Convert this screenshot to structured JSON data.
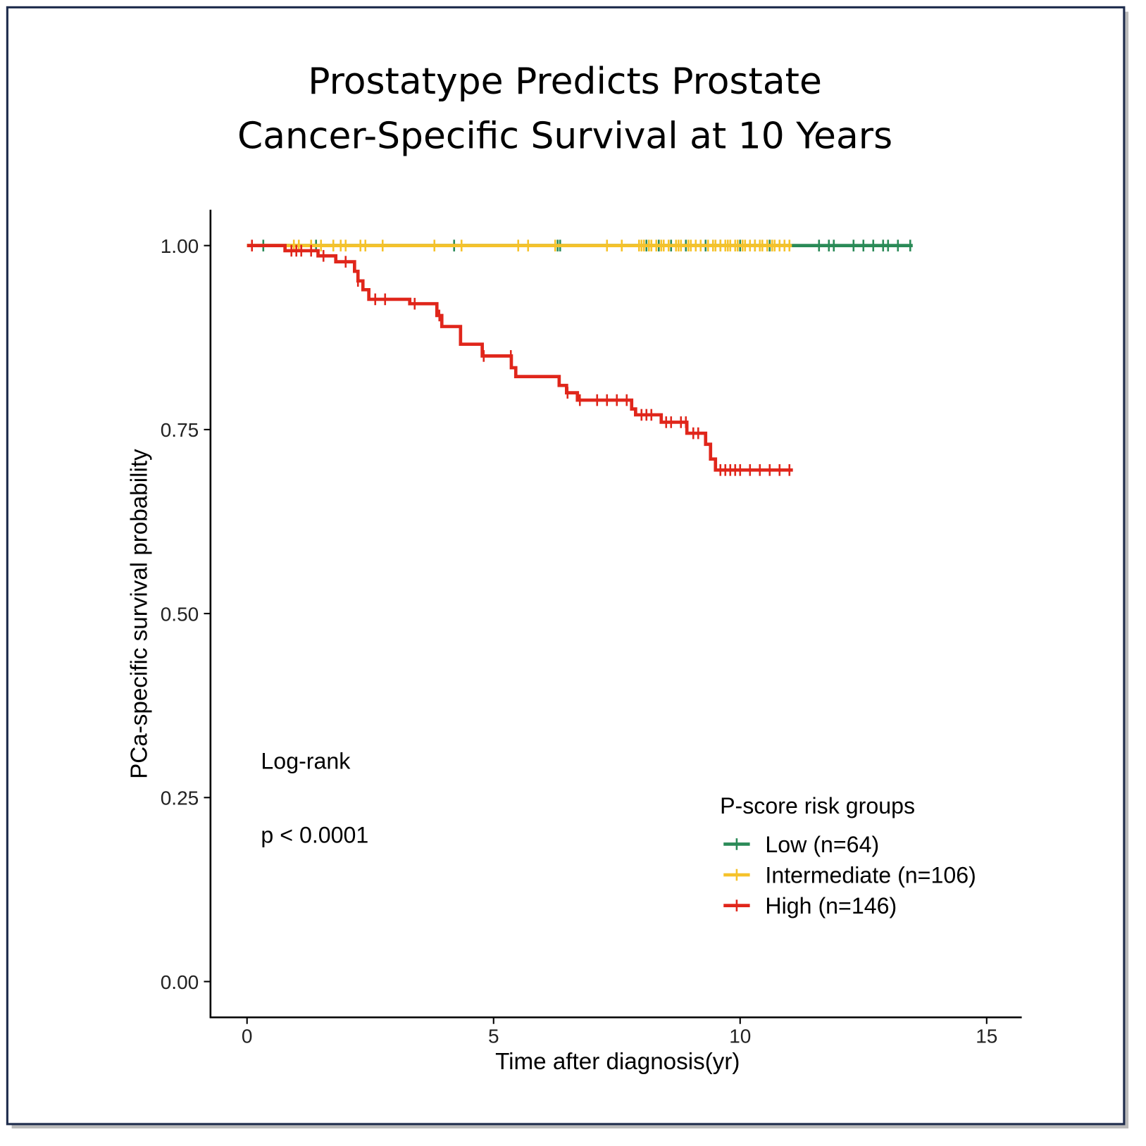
{
  "chart_data": {
    "type": "line",
    "subtype": "kaplan-meier",
    "title_lines": [
      "Prostatype Predicts Prostate",
      "Cancer-Specific Survival at 10 Years"
    ],
    "xlabel": "Time after diagnosis(yr)",
    "ylabel": "PCa-specific survival probability",
    "xlim": [
      -0.75,
      15.7
    ],
    "ylim": [
      -0.05,
      1.05
    ],
    "x_ticks": [
      0,
      5,
      10,
      15
    ],
    "x_tick_labels": [
      "0",
      "5",
      "10",
      "15"
    ],
    "y_ticks": [
      0,
      0.25,
      0.5,
      0.75,
      1.0
    ],
    "y_tick_labels": [
      "0.00",
      "0.25",
      "0.50",
      "0.75",
      "1.00"
    ],
    "grid": false,
    "annotations": {
      "test": "Log-rank",
      "p_value": "p < 0.0001"
    },
    "legend": {
      "title": "P-score risk groups",
      "placement": "bottom-right"
    },
    "series": [
      {
        "name": "Low (n=64)",
        "color": "#2a8a57",
        "steps": [
          [
            0,
            1.0
          ],
          [
            13.5,
            1.0
          ]
        ],
        "censor_times": [
          0.33,
          1.4,
          4.2,
          6.3,
          6.35,
          8.1,
          8.35,
          8.6,
          8.9,
          9.3,
          9.6,
          10.0,
          10.3,
          10.6,
          11.6,
          11.8,
          11.9,
          12.3,
          12.5,
          12.7,
          12.9,
          13.0,
          13.2,
          13.45
        ]
      },
      {
        "name": "Intermediate (n=106)",
        "color": "#f5c22b",
        "steps": [
          [
            0,
            1.0
          ],
          [
            11.05,
            1.0
          ]
        ],
        "censor_times": [
          0.95,
          1.05,
          1.3,
          1.5,
          1.75,
          1.9,
          2.0,
          2.3,
          2.4,
          2.75,
          3.8,
          4.35,
          5.5,
          5.7,
          6.25,
          7.3,
          7.6,
          7.95,
          8.0,
          8.05,
          8.15,
          8.2,
          8.3,
          8.4,
          8.45,
          8.55,
          8.7,
          8.75,
          8.8,
          8.95,
          9.0,
          9.1,
          9.2,
          9.35,
          9.45,
          9.5,
          9.6,
          9.7,
          9.75,
          9.8,
          9.9,
          9.95,
          10.05,
          10.1,
          10.2,
          10.3,
          10.4,
          10.45,
          10.55,
          10.65,
          10.7,
          10.8,
          10.9,
          11.0
        ]
      },
      {
        "name": "High (n=146)",
        "color": "#e0261b",
        "steps": [
          [
            0,
            1.0
          ],
          [
            0.77,
            0.993
          ],
          [
            1.44,
            0.986
          ],
          [
            1.8,
            0.978
          ],
          [
            2.18,
            0.965
          ],
          [
            2.25,
            0.952
          ],
          [
            2.35,
            0.94
          ],
          [
            2.47,
            0.927
          ],
          [
            3.3,
            0.921
          ],
          [
            3.85,
            0.905
          ],
          [
            3.95,
            0.89
          ],
          [
            4.33,
            0.866
          ],
          [
            4.77,
            0.85
          ],
          [
            5.36,
            0.834
          ],
          [
            5.45,
            0.822
          ],
          [
            6.33,
            0.81
          ],
          [
            6.48,
            0.8
          ],
          [
            6.7,
            0.79
          ],
          [
            7.8,
            0.778
          ],
          [
            7.88,
            0.77
          ],
          [
            8.4,
            0.76
          ],
          [
            8.92,
            0.745
          ],
          [
            9.3,
            0.73
          ],
          [
            9.4,
            0.71
          ],
          [
            9.5,
            0.695
          ],
          [
            11.07,
            0.695
          ]
        ],
        "censor_times": [
          0.1,
          0.9,
          1.0,
          1.1,
          1.3,
          1.55,
          2.0,
          2.25,
          2.6,
          2.8,
          3.4,
          3.9,
          4.8,
          5.35,
          6.5,
          6.75,
          7.1,
          7.3,
          7.5,
          7.7,
          8.0,
          8.1,
          8.2,
          8.5,
          8.6,
          8.8,
          8.9,
          9.05,
          9.15,
          9.6,
          9.7,
          9.8,
          9.9,
          10.0,
          10.2,
          10.4,
          10.6,
          10.8,
          11.0
        ]
      }
    ]
  }
}
